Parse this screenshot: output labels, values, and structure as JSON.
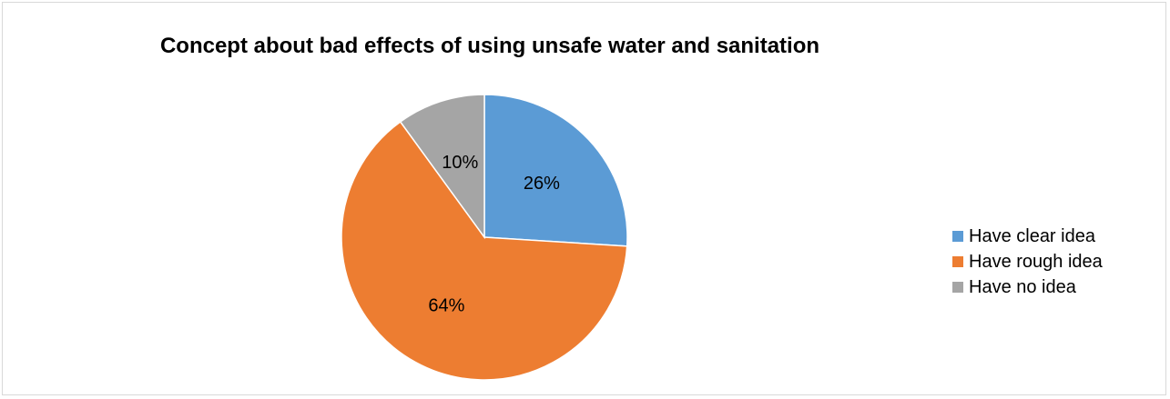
{
  "chart_data": {
    "type": "pie",
    "title": "Concept about bad effects of using unsafe water and sanitation",
    "categories": [
      "Have clear idea",
      "Have rough idea",
      "Have no idea"
    ],
    "values": [
      26,
      64,
      10
    ],
    "labels": [
      "26%",
      "64%",
      "10%"
    ],
    "colors": [
      "#5b9bd5",
      "#ed7d31",
      "#a5a5a5"
    ],
    "legend_position": "right"
  }
}
